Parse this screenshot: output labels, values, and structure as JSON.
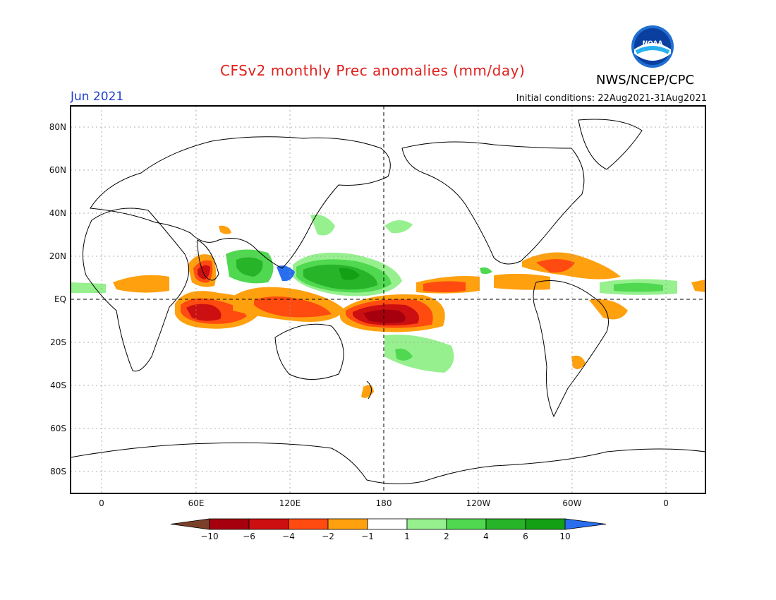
{
  "title": "CFSv2 monthly Prec anomalies (mm/day)",
  "agency": "NWS/NCEP/CPC",
  "logo_text": "NOAA",
  "month": "Jun 2021",
  "initial_conditions": "Initial conditions: 22Aug2021-31Aug2021",
  "lat_labels": [
    "80N",
    "60N",
    "40N",
    "20N",
    "EQ",
    "20S",
    "40S",
    "60S",
    "80S"
  ],
  "lon_labels": [
    "0",
    "60E",
    "120E",
    "180",
    "120W",
    "60W",
    "0"
  ],
  "colorbar": {
    "labels": [
      "-10",
      "-6",
      "-4",
      "-2",
      "-1",
      "1",
      "2",
      "4",
      "6",
      "10"
    ],
    "colors": [
      "#7a4028",
      "#a6000e",
      "#cc0f10",
      "#ff4a10",
      "#ffa00f",
      "#ffffff",
      "#96f08e",
      "#50d850",
      "#28b428",
      "#14a014",
      "#2a6ef0"
    ]
  }
}
